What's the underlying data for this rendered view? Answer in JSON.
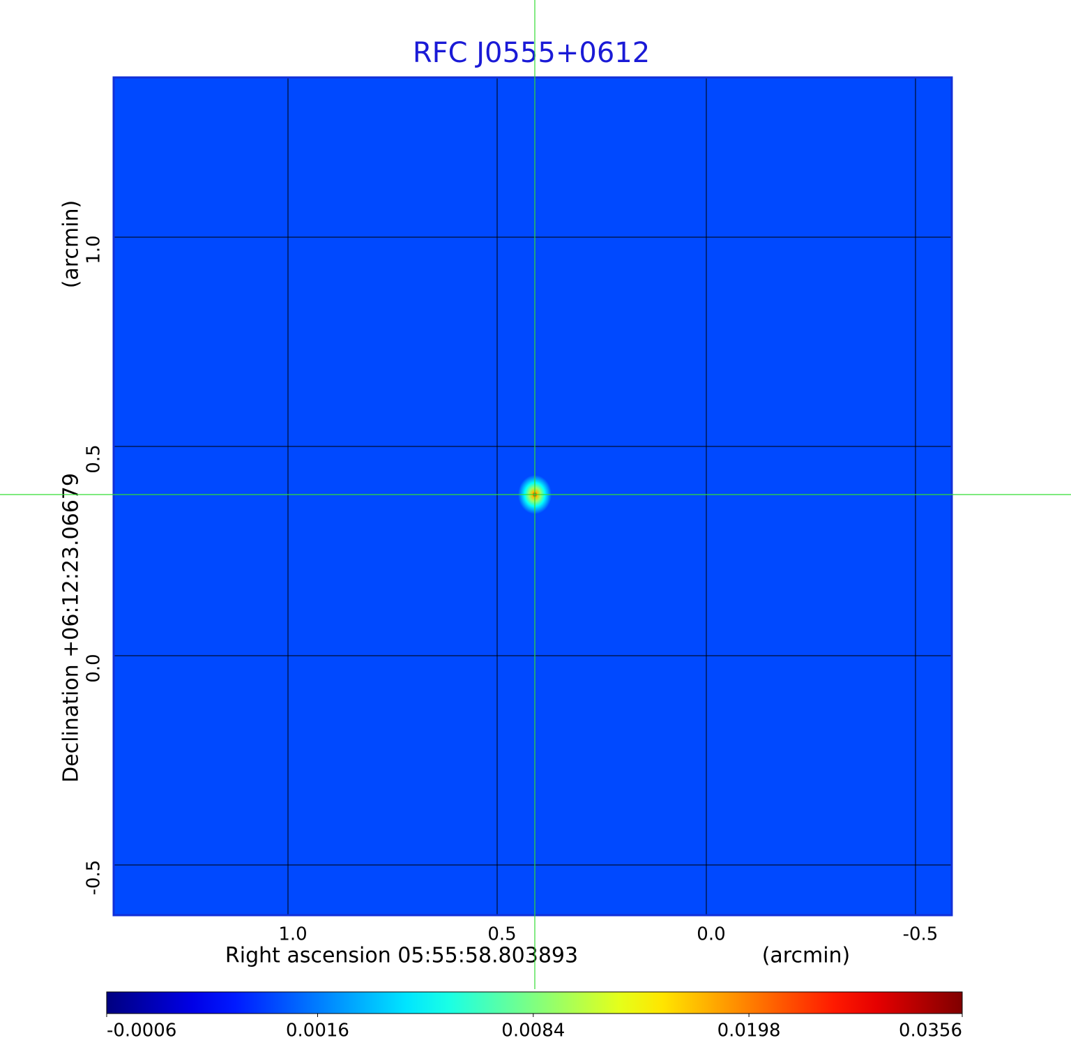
{
  "chart_data": {
    "type": "image",
    "title": "RFC J0555+0612",
    "x_label": "Right ascension  05:55:58.803893",
    "x_unit": "(arcmin)",
    "y_label": "Declination  +06:12:23.06679",
    "y_unit": "(arcmin)",
    "xlim": [
      1.4167,
      -0.5867
    ],
    "ylim": [
      -0.62,
      1.3817
    ],
    "xticks": [
      1.0,
      0.5,
      0.0,
      -0.5
    ],
    "yticks": [
      1.0,
      0.5,
      0.0,
      -0.5
    ],
    "xtick_labels": [
      "1.0",
      "0.5",
      "0.0",
      "-0.5"
    ],
    "ytick_labels": [
      "1.0",
      "0.5",
      "0.0",
      "-0.5"
    ],
    "grid": true,
    "colormap": "jet",
    "color_scale": "sqrt",
    "clim": [
      -0.0006,
      0.0356
    ],
    "colorbar_ticks": [
      -0.0006,
      0.0016,
      0.0084,
      0.0198,
      0.0356
    ],
    "background_level": 0.0008,
    "source": {
      "x": 0.41,
      "y": 0.385,
      "peak": 0.0356
    },
    "crosshair_color": "#33dd33",
    "title_color": "#1a1ad6"
  }
}
